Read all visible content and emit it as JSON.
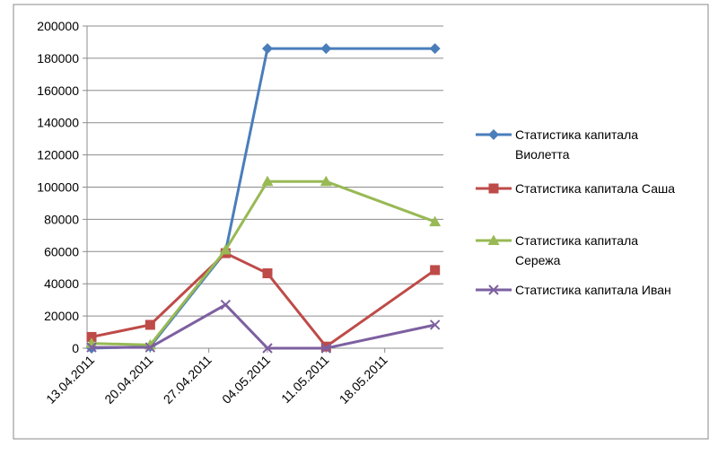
{
  "chart_data": {
    "type": "line",
    "x": [
      "13.04.2011",
      "20.04.2011",
      "29.04.2011",
      "04.05.2011",
      "11.05.2011",
      "24.05.2011"
    ],
    "xlim": [
      "13.04.2011",
      "25.05.2011"
    ],
    "xticks": [
      "13.04.2011",
      "20.04.2011",
      "27.04.2011",
      "04.05.2011",
      "11.05.2011",
      "18.05.2011"
    ],
    "ylim": [
      0,
      200000
    ],
    "yticks": [
      0,
      20000,
      40000,
      60000,
      80000,
      100000,
      120000,
      140000,
      160000,
      180000,
      200000
    ],
    "grid": true,
    "legend": "right",
    "series": [
      {
        "name": "Статистика капитала Виолетта",
        "color": "#4a7ebb",
        "marker": "diamond",
        "values": [
          0,
          1000,
          60000,
          186000,
          186000,
          186000
        ]
      },
      {
        "name": "Статистика капитала Саша",
        "color": "#be4b48",
        "marker": "square",
        "values": [
          7000,
          14500,
          59000,
          46500,
          1000,
          48500
        ]
      },
      {
        "name": "Статистика капитала Сережа",
        "color": "#98b954",
        "marker": "triangle",
        "values": [
          3000,
          2000,
          61000,
          103500,
          103500,
          78500
        ]
      },
      {
        "name": "Статистика капитала Иван",
        "color": "#7d60a0",
        "marker": "x",
        "values": [
          500,
          500,
          27000,
          0,
          0,
          14500
        ]
      }
    ]
  }
}
